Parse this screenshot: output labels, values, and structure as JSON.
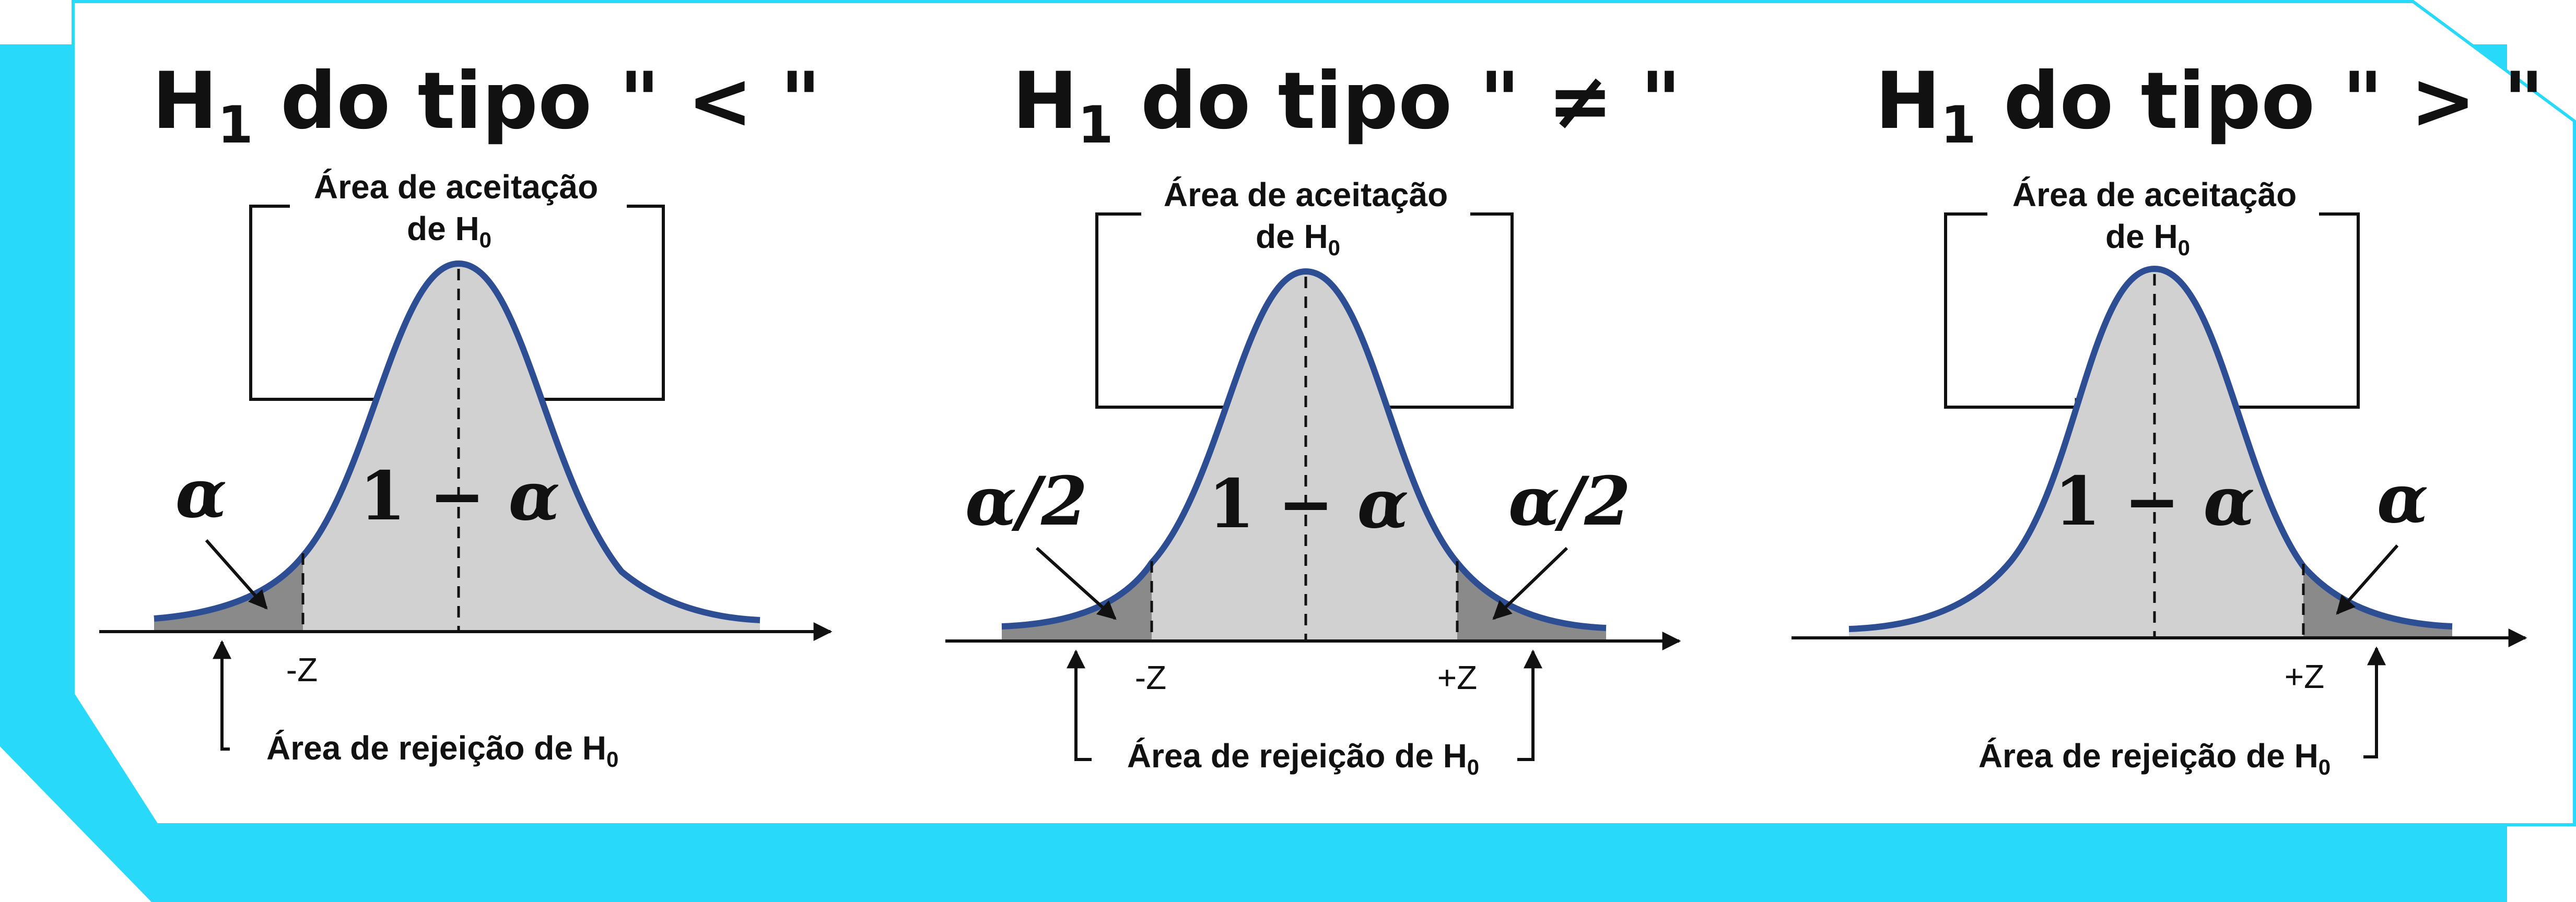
{
  "colors": {
    "frame": "#29D9F9",
    "panel": "#FFFFFF",
    "curve_stroke": "#2E4E93",
    "acceptance_fill": "#D1D1D1",
    "rejection_fill": "#8A8A8A",
    "ink": "#111111"
  },
  "panels": [
    {
      "id": "left",
      "title_main": "H",
      "title_sub": "1",
      "title_rest": " do tipo \" < \"",
      "acceptance_label_line1": "Área de aceitação",
      "acceptance_label_line2_main": "de H",
      "acceptance_label_line2_sub": "0",
      "center_label_one": "1 − ",
      "center_label_alpha": "α",
      "tail_left_label": "α",
      "tail_right_label": "",
      "z_left_label": "-Z",
      "z_right_label": "",
      "rejection_label_main": "Área de rejeição de H",
      "rejection_label_sub": "0"
    },
    {
      "id": "middle",
      "title_main": "H",
      "title_sub": "1",
      "title_rest": " do tipo \" ≠ \"",
      "acceptance_label_line1": "Área de aceitação",
      "acceptance_label_line2_main": "de H",
      "acceptance_label_line2_sub": "0",
      "center_label_one": "1 − ",
      "center_label_alpha": "α",
      "tail_left_label": "α/2",
      "tail_right_label": "α/2",
      "z_left_label": "-Z",
      "z_right_label": "+Z",
      "rejection_label_main": "Área de rejeição de H",
      "rejection_label_sub": "0"
    },
    {
      "id": "right",
      "title_main": "H",
      "title_sub": "1",
      "title_rest": " do tipo \" > \"",
      "acceptance_label_line1": "Área de aceitação",
      "acceptance_label_line2_main": "de H",
      "acceptance_label_line2_sub": "0",
      "center_label_one": "1 − ",
      "center_label_alpha": "α",
      "tail_left_label": "",
      "tail_right_label": "α",
      "z_left_label": "",
      "z_right_label": "+Z",
      "rejection_label_main": "Área de rejeição de H",
      "rejection_label_sub": "0"
    }
  ]
}
